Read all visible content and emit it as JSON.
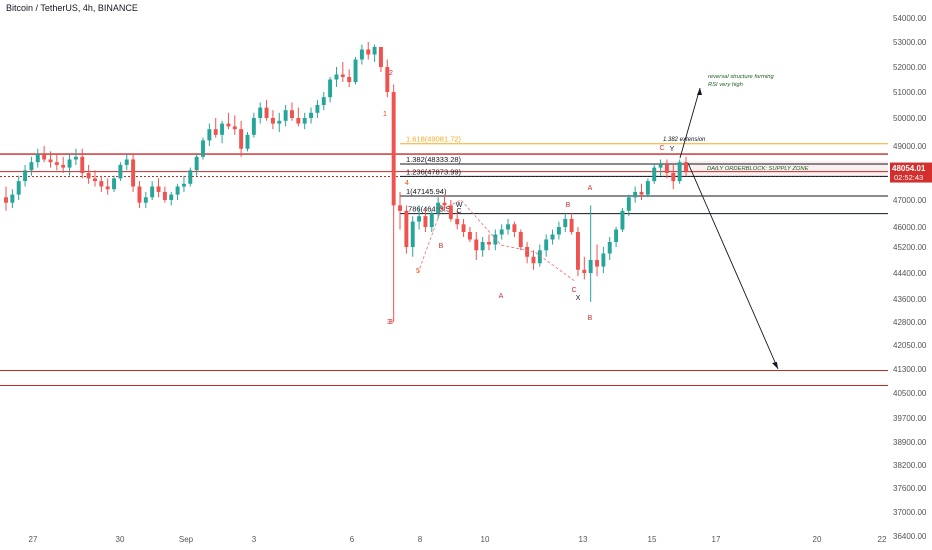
{
  "title": "Bitcoin / TetherUS, 4h, BINANCE",
  "colors": {
    "up": "#26a69a",
    "down": "#ef5350",
    "level_red": "#c62828",
    "fib_orange": "#f9a825",
    "line_dark": "#131722",
    "label_red": "#d32f2f",
    "label_orange": "#e65100",
    "annot_green": "#1b5e20"
  },
  "price_axis": {
    "ticks": [
      {
        "label": "54000.00",
        "value": 54000
      },
      {
        "label": "53000.00",
        "value": 53000
      },
      {
        "label": "52000.00",
        "value": 52000
      },
      {
        "label": "51000.00",
        "value": 51000
      },
      {
        "label": "50000.00",
        "value": 50000
      },
      {
        "label": "49000.00",
        "value": 49000
      },
      {
        "label": "47000.00",
        "value": 47000
      },
      {
        "label": "46000.00",
        "value": 46000
      },
      {
        "label": "45200.00",
        "value": 45200
      },
      {
        "label": "44400.00",
        "value": 44400
      },
      {
        "label": "43600.00",
        "value": 43600
      },
      {
        "label": "42800.00",
        "value": 42800
      },
      {
        "label": "42050.00",
        "value": 42050
      },
      {
        "label": "41300.00",
        "value": 41300
      },
      {
        "label": "40500.00",
        "value": 40500
      },
      {
        "label": "39700.00",
        "value": 39700
      },
      {
        "label": "38900.00",
        "value": 38900
      },
      {
        "label": "38200.00",
        "value": 38200
      },
      {
        "label": "37600.00",
        "value": 37600
      },
      {
        "label": "37000.00",
        "value": 37000
      },
      {
        "label": "36400.00",
        "value": 36400
      }
    ],
    "current_price": "48054.01",
    "countdown": "02:52:43"
  },
  "time_axis": [
    "27",
    "30",
    "Sep",
    "3",
    "6",
    "8",
    "10",
    "13",
    "15",
    "17",
    "20",
    "22"
  ],
  "levels": [
    {
      "label": "1.618(49081.72)",
      "value": 49081.72,
      "kind": "fib"
    },
    {
      "label": "1.382(48333.28)",
      "value": 48333.28,
      "kind": "fib_dark"
    },
    {
      "label": "1.236(47873.99)",
      "value": 47873.99,
      "kind": "fib_dark"
    },
    {
      "label": "1(47145.94)",
      "value": 47145.94,
      "kind": "fib_dark"
    },
    {
      "label": ".786(46493.5",
      "value": 46493.5,
      "kind": "fib_dark"
    }
  ],
  "annotations": {
    "extension": "1.382 extension",
    "supply_zone": "DAILY ORDERBLOCK: SUPPLY ZONE",
    "reversal_line1": "reversal structure forming",
    "reversal_line2": "RSI very high",
    "wave_labels": [
      "1",
      "2",
      "3",
      "4",
      "5",
      "A",
      "B",
      "C",
      "A",
      "B",
      "C",
      "A",
      "B",
      "C",
      "W",
      "X",
      "Y",
      "3"
    ]
  },
  "chart_data": {
    "type": "candlestick",
    "title": "Bitcoin / TetherUS, 4h, BINANCE",
    "ylim": [
      36400,
      54600
    ],
    "candles_ohlc": [
      [
        47100,
        47500,
        46600,
        46900
      ],
      [
        46900,
        47400,
        46700,
        47200
      ],
      [
        47200,
        47900,
        47000,
        47700
      ],
      [
        47700,
        48300,
        47500,
        48100
      ],
      [
        48100,
        48600,
        47900,
        48400
      ],
      [
        48400,
        48900,
        48200,
        48700
      ],
      [
        48700,
        49000,
        48400,
        48500
      ],
      [
        48500,
        48800,
        48200,
        48400
      ],
      [
        48400,
        48700,
        48100,
        48300
      ],
      [
        48300,
        48600,
        48000,
        48200
      ],
      [
        48200,
        48700,
        47900,
        48500
      ],
      [
        48500,
        48900,
        48300,
        48600
      ],
      [
        48600,
        48900,
        47800,
        48000
      ],
      [
        48000,
        48300,
        47600,
        47800
      ],
      [
        47800,
        48100,
        47500,
        47700
      ],
      [
        47700,
        47900,
        47300,
        47500
      ],
      [
        47500,
        47800,
        47200,
        47400
      ],
      [
        47400,
        47900,
        47300,
        47800
      ],
      [
        47800,
        48400,
        47700,
        48300
      ],
      [
        48300,
        48700,
        48100,
        48500
      ],
      [
        48500,
        48700,
        47300,
        47500
      ],
      [
        47500,
        47700,
        46700,
        46900
      ],
      [
        46900,
        47300,
        46700,
        47100
      ],
      [
        47100,
        47700,
        47000,
        47500
      ],
      [
        47500,
        47800,
        47100,
        47300
      ],
      [
        47300,
        47500,
        46900,
        47000
      ],
      [
        47000,
        47300,
        46800,
        47200
      ],
      [
        47200,
        47600,
        47000,
        47500
      ],
      [
        47500,
        47900,
        47300,
        47600
      ],
      [
        47600,
        48200,
        47500,
        48100
      ],
      [
        48100,
        48700,
        47900,
        48600
      ],
      [
        48600,
        49300,
        48500,
        49200
      ],
      [
        49200,
        49800,
        49000,
        49600
      ],
      [
        49600,
        50000,
        49300,
        49400
      ],
      [
        49400,
        49900,
        49100,
        49800
      ],
      [
        49800,
        50200,
        49600,
        49700
      ],
      [
        49700,
        50100,
        49400,
        49600
      ],
      [
        49600,
        49900,
        48600,
        48900
      ],
      [
        48900,
        49500,
        48800,
        49400
      ],
      [
        49400,
        50200,
        49300,
        50000
      ],
      [
        50000,
        50600,
        49800,
        50400
      ],
      [
        50400,
        50700,
        49900,
        50000
      ],
      [
        50000,
        50300,
        49600,
        49800
      ],
      [
        49800,
        50200,
        49500,
        49900
      ],
      [
        49900,
        50500,
        49700,
        50300
      ],
      [
        50300,
        50600,
        49900,
        50000
      ],
      [
        50000,
        50400,
        49700,
        49800
      ],
      [
        49800,
        50200,
        49600,
        50000
      ],
      [
        50000,
        50400,
        49800,
        50200
      ],
      [
        50200,
        50700,
        50000,
        50500
      ],
      [
        50500,
        51000,
        50300,
        50800
      ],
      [
        50800,
        51600,
        50600,
        51500
      ],
      [
        51500,
        52000,
        51200,
        51700
      ],
      [
        51700,
        52200,
        51400,
        51600
      ],
      [
        51600,
        51900,
        51200,
        51400
      ],
      [
        51400,
        52400,
        51300,
        52300
      ],
      [
        52300,
        52900,
        52100,
        52700
      ],
      [
        52700,
        53000,
        52300,
        52500
      ],
      [
        52500,
        52900,
        52200,
        52800
      ],
      [
        52800,
        52800,
        51800,
        52000
      ],
      [
        52000,
        52300,
        50800,
        51000
      ],
      [
        51000,
        51300,
        42800,
        46800
      ],
      [
        46800,
        47300,
        45900,
        46600
      ],
      [
        46600,
        46800,
        45000,
        45200
      ],
      [
        45200,
        46400,
        44900,
        46200
      ],
      [
        46200,
        46800,
        45900,
        46400
      ],
      [
        46400,
        46700,
        45800,
        46000
      ],
      [
        46000,
        46600,
        45800,
        46500
      ],
      [
        46500,
        47100,
        46300,
        46900
      ],
      [
        46900,
        47200,
        46600,
        46800
      ],
      [
        46800,
        47000,
        46200,
        46300
      ],
      [
        46300,
        46600,
        45900,
        46100
      ],
      [
        46100,
        46300,
        45600,
        45800
      ],
      [
        45800,
        46000,
        45400,
        45500
      ],
      [
        45500,
        45800,
        44800,
        45100
      ],
      [
        45100,
        45600,
        44900,
        45400
      ],
      [
        45400,
        45700,
        45100,
        45300
      ],
      [
        45300,
        45900,
        45100,
        45700
      ],
      [
        45700,
        46100,
        45500,
        45900
      ],
      [
        45900,
        46300,
        45700,
        46100
      ],
      [
        46100,
        46200,
        45600,
        45800
      ],
      [
        45800,
        45900,
        45100,
        45200
      ],
      [
        45200,
        45400,
        44700,
        44900
      ],
      [
        44900,
        45100,
        44500,
        44700
      ],
      [
        44700,
        45300,
        44600,
        45100
      ],
      [
        45100,
        45700,
        44900,
        45500
      ],
      [
        45500,
        45900,
        45300,
        45700
      ],
      [
        45700,
        46200,
        45500,
        46000
      ],
      [
        46000,
        46500,
        45800,
        46300
      ],
      [
        46300,
        46500,
        45700,
        45800
      ],
      [
        45800,
        46000,
        44300,
        44500
      ],
      [
        44500,
        44900,
        44200,
        44400
      ],
      [
        44400,
        46800,
        43500,
        44800
      ],
      [
        44800,
        45300,
        44300,
        44600
      ],
      [
        44600,
        45200,
        44400,
        45000
      ],
      [
        45000,
        45600,
        44800,
        45400
      ],
      [
        45400,
        46000,
        45200,
        45900
      ],
      [
        45900,
        46700,
        45800,
        46600
      ],
      [
        46600,
        47200,
        46400,
        47100
      ],
      [
        47100,
        47500,
        46900,
        47300
      ],
      [
        47300,
        47600,
        47000,
        47200
      ],
      [
        47200,
        47800,
        47100,
        47700
      ],
      [
        47700,
        48300,
        47600,
        48200
      ],
      [
        48200,
        48500,
        47900,
        48300
      ],
      [
        48300,
        48500,
        47800,
        48000
      ],
      [
        48000,
        48300,
        47400,
        47700
      ],
      [
        47700,
        48500,
        47600,
        48400
      ],
      [
        48400,
        48600,
        47900,
        48054
      ]
    ]
  }
}
